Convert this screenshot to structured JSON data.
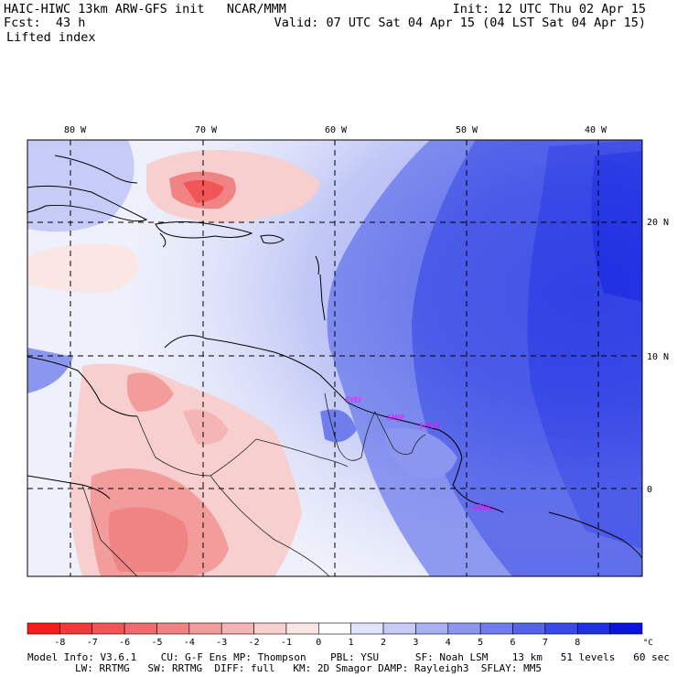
{
  "header": {
    "title_left": "HAIC-HIWC 13km ARW-GFS init   NCAR/MMM",
    "forecast": "Fcst:  43 h",
    "field": "Lifted index",
    "init": "Init: 12 UTC Thu 02 Apr 15",
    "valid": "Valid: 07 UTC Sat 04 Apr 15 (04 LST Sat 04 Apr 15)"
  },
  "map": {
    "lon_labels": [
      "80 W",
      "70 W",
      "60 W",
      "50 W",
      "40 W"
    ],
    "lat_labels": [
      "20 N",
      "10 N",
      "0"
    ],
    "stations": [
      "SYEI",
      "SMJP",
      "SOCA",
      "SBBE"
    ],
    "station_color": "#ff00ff"
  },
  "colorbar": {
    "ticks": [
      "-8",
      "-7",
      "-6",
      "-5",
      "-4",
      "-3",
      "-2",
      "-1",
      "0",
      "1",
      "2",
      "3",
      "4",
      "5",
      "6",
      "7",
      "8"
    ],
    "unit": "°C",
    "colors": [
      "#ff1a1a",
      "#f23a3a",
      "#f25555",
      "#f06c6c",
      "#f08383",
      "#f29c9c",
      "#f5b5b5",
      "#f8cfcf",
      "#fbe6e6",
      "#ffffff",
      "#e0e3fb",
      "#c6ccf7",
      "#a7b1f2",
      "#8b97ef",
      "#6f7eec",
      "#5565e9",
      "#3a4ae6",
      "#2030e3",
      "#0a14e0"
    ]
  },
  "footer": {
    "line1": "Model Info: V3.6.1    CU: G-F Ens MP: Thompson    PBL: YSU      SF: Noah LSM    13 km   51 levels   60 sec",
    "line2": "LW: RRTMG   SW: RRTMG  DIFF: full   KM: 2D Smagor DAMP: Rayleigh3  SFLAY: MM5"
  }
}
